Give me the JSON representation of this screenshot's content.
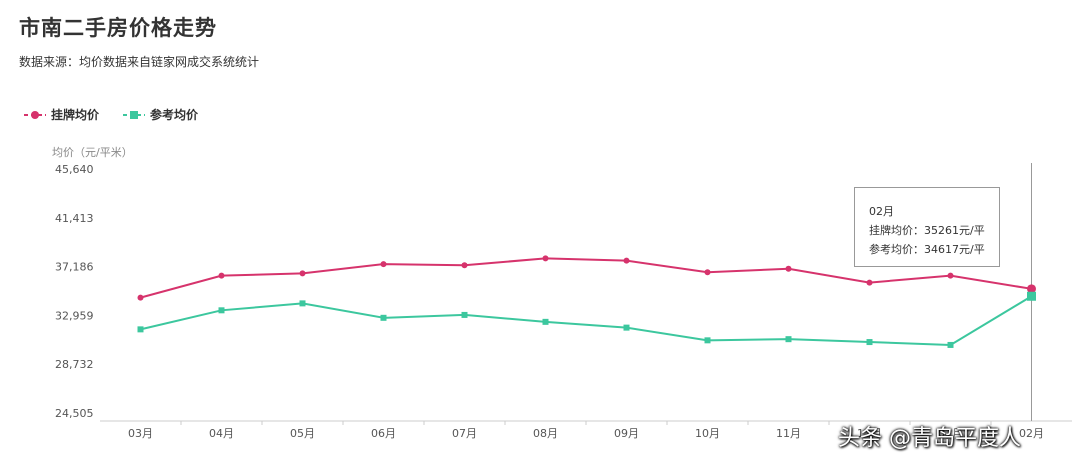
{
  "title": "市南二手房价格走势",
  "subtitle": "数据来源：均价数据来自链家网成交系统统计",
  "watermark": "头条 @青岛平度人",
  "tooltip": {
    "month": "02月",
    "line1": "挂牌均价：35261元/平",
    "line2": "参考均价：34617元/平"
  },
  "chart_data": {
    "type": "line",
    "ylabel": "均价（元/平米）",
    "categories": [
      "03月",
      "04月",
      "05月",
      "06月",
      "07月",
      "08月",
      "09月",
      "10月",
      "11月",
      "12月",
      "01月",
      "02月"
    ],
    "yticks": [
      "45,640",
      "41,413",
      "37,186",
      "32,959",
      "28,732",
      "24,505"
    ],
    "ylim": [
      24505,
      45640
    ],
    "grid": false,
    "legend_position": "top-left",
    "highlighted_category": "02月",
    "series": [
      {
        "name": "挂牌均价",
        "color": "#d6336c",
        "marker": "circle",
        "values": [
          34500,
          36400,
          36600,
          37400,
          37300,
          37900,
          37700,
          36700,
          37000,
          35800,
          36400,
          35261
        ]
      },
      {
        "name": "参考均价",
        "color": "#3cc79e",
        "marker": "square",
        "values": [
          31750,
          33400,
          34000,
          32750,
          33000,
          32400,
          31900,
          30800,
          30900,
          30650,
          30400,
          34617
        ]
      }
    ]
  }
}
